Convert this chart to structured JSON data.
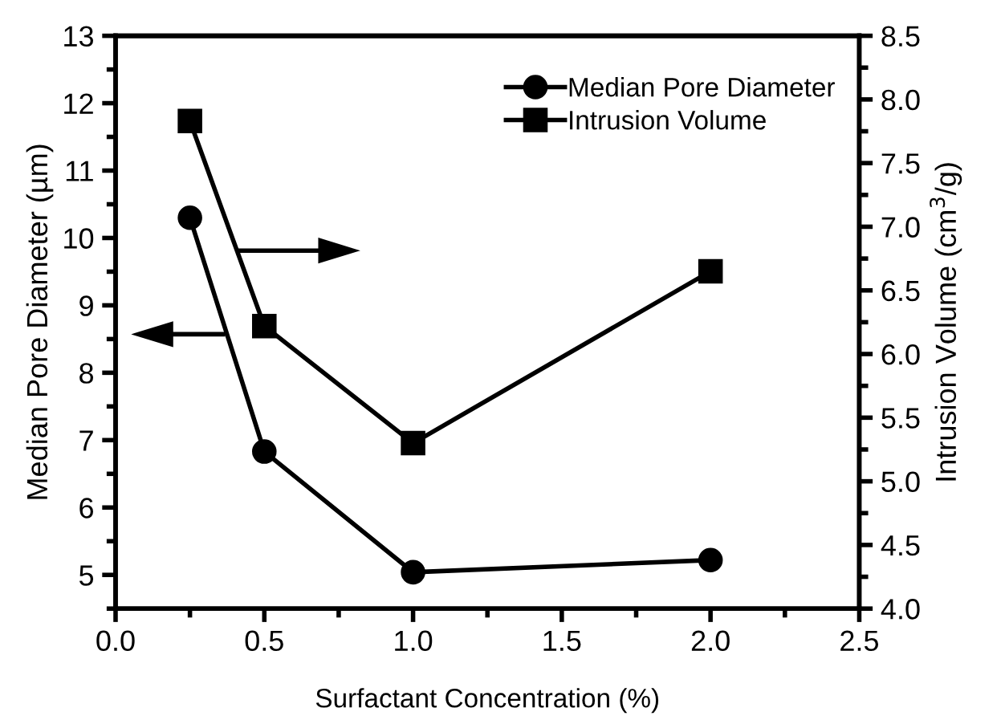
{
  "chart_data": {
    "type": "line",
    "x": [
      0.25,
      0.5,
      1.0,
      2.0
    ],
    "xlabel": "Surfactant Concentration (%)",
    "ylabel": "Median Pore Diameter (µm)",
    "y2label": "Intrusion Volume (cm$^{3}$/g)",
    "series": [
      {
        "name": "Median Pore Diameter",
        "color": "#000000",
        "values": [
          10.3,
          6.83,
          5.04,
          5.22
        ],
        "marker": "circle"
      },
      {
        "name": "Intrusion Volume",
        "color": "#000000",
        "values": [
          7.83,
          6.22,
          5.3,
          6.65
        ],
        "marker": "square",
        "axis": "y2"
      }
    ],
    "xlim": [
      0,
      2.5
    ],
    "xticks": [
      {
        "value": 0,
        "label": "0.0"
      },
      {
        "value": 0.5,
        "label": "0.5"
      },
      {
        "value": 1.0,
        "label": "1.0"
      },
      {
        "value": 1.5,
        "label": "1.5"
      },
      {
        "value": 2.0,
        "label": "2.0"
      },
      {
        "value": 2.5,
        "label": "2.5"
      }
    ],
    "ylim": [
      4.5,
      13
    ],
    "yticks": [
      5,
      6,
      7,
      8,
      9,
      10,
      11,
      12,
      13
    ],
    "y2lim": [
      4.0,
      8.5
    ],
    "y2ticks": [
      {
        "value": 4.0,
        "label": "4.0"
      },
      4.5,
      {
        "value": 5.0,
        "label": "5.0"
      },
      5.5,
      {
        "value": 6.0,
        "label": "6.0"
      },
      6.5,
      {
        "value": 7.0,
        "label": "7.0"
      },
      7.5,
      {
        "value": 8.0,
        "label": "8.0"
      },
      8.5
    ],
    "legend": "top right",
    "grid": false,
    "line_style": "solid"
  }
}
